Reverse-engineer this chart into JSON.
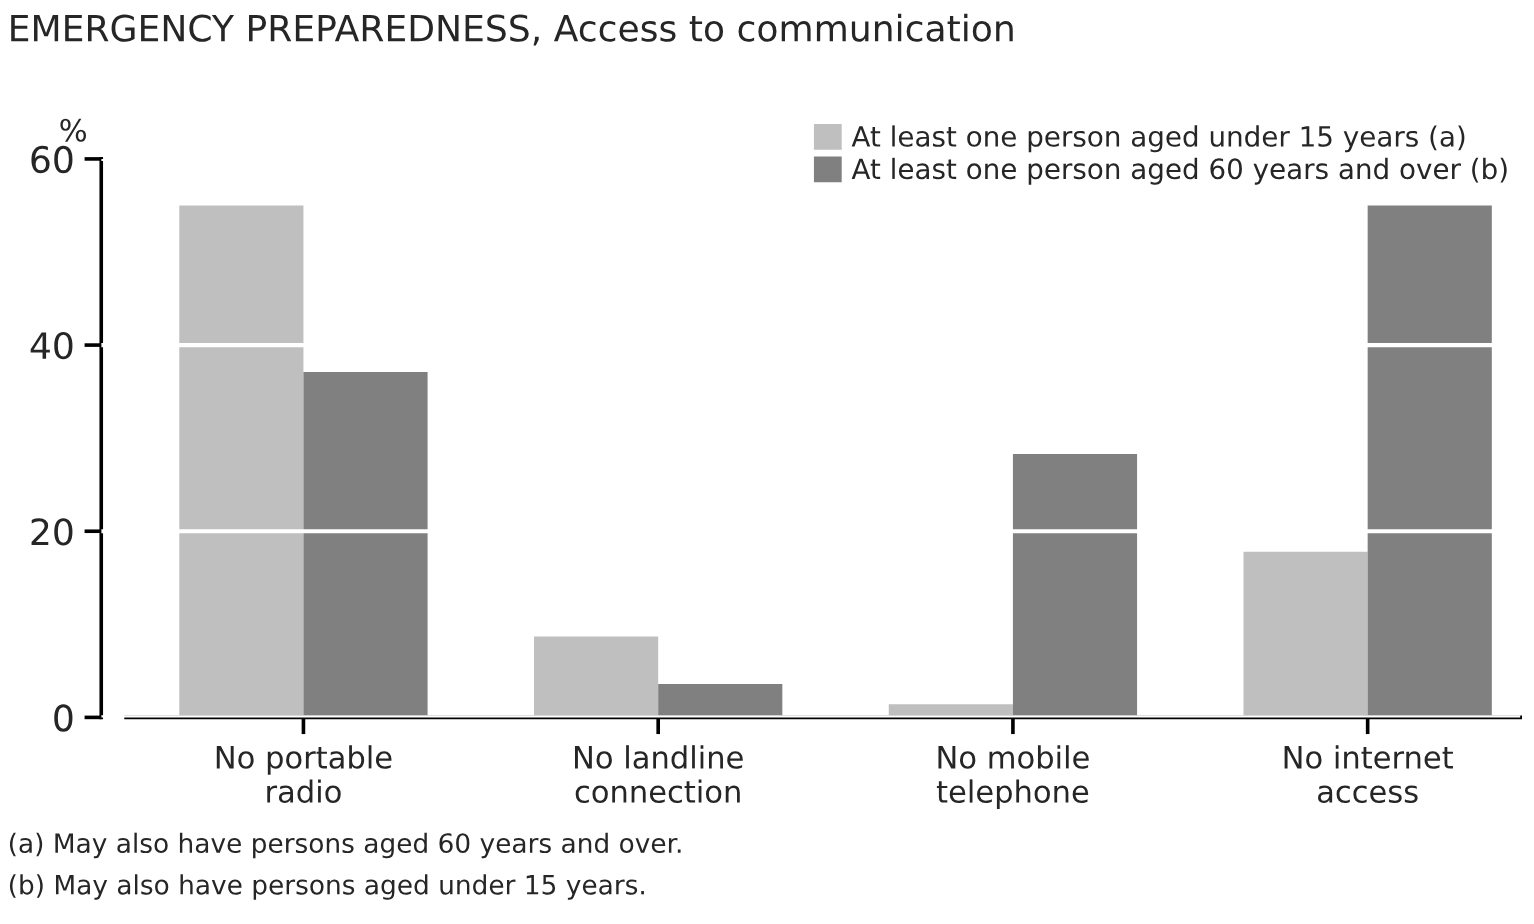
{
  "chart_data": {
    "type": "bar",
    "title": "EMERGENCY PREPAREDNESS, Access to communication",
    "ylabel": "%",
    "categories": [
      "No portable\nradio",
      "No landline\nconnection",
      "No mobile\ntelephone",
      "No internet\naccess"
    ],
    "series": [
      {
        "name": "At least one person aged under 15 years (a)",
        "color": "#bfbfbf",
        "values": [
          55.0,
          8.7,
          1.4,
          17.8
        ]
      },
      {
        "name": "At least one person aged 60 years and over (b)",
        "color": "#808080",
        "values": [
          37.1,
          3.6,
          28.3,
          55.0
        ]
      }
    ],
    "ylim": [
      0,
      60
    ],
    "yticks": [
      0,
      20,
      40,
      60
    ],
    "grid": "y",
    "legend": "top right",
    "annotations": [
      "(a) May also have persons aged 60 years and over.",
      "(b) May also have persons aged under 15 years."
    ]
  }
}
